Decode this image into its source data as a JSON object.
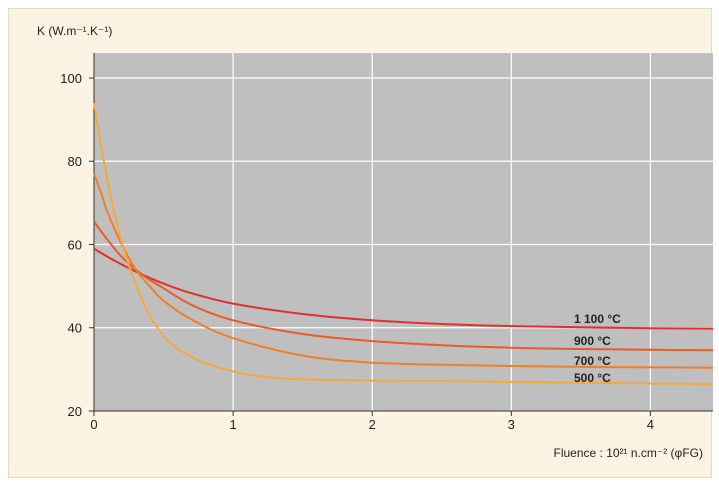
{
  "chart_data": {
    "type": "line",
    "title": "",
    "ylabel": "K (W.m⁻¹.K⁻¹)",
    "xlabel": "Fluence : 10²¹ n.cm⁻² (φFG)",
    "xlim": [
      0,
      4.45
    ],
    "ylim": [
      20,
      106
    ],
    "xticks": [
      0,
      1,
      2,
      3,
      4
    ],
    "yticks": [
      20,
      40,
      60,
      80,
      100
    ],
    "grid": true,
    "background_color": "#bfbfbf",
    "grid_color": "#ffffff",
    "series": [
      {
        "name": "1 100 °C",
        "color": "#e0302e",
        "x": [
          0,
          0.1,
          0.2,
          0.3,
          0.4,
          0.5,
          0.7,
          1.0,
          1.5,
          2.0,
          2.5,
          3.0,
          3.5,
          4.0,
          4.45
        ],
        "y": [
          59,
          57,
          55.2,
          53.5,
          52,
          50.6,
          48.3,
          45.8,
          43.3,
          41.8,
          40.9,
          40.4,
          40.1,
          39.9,
          39.8
        ]
      },
      {
        "name": "900 °C",
        "color": "#ea5a2a",
        "x": [
          0,
          0.1,
          0.2,
          0.3,
          0.4,
          0.5,
          0.7,
          1.0,
          1.5,
          2.0,
          2.5,
          3.0,
          3.5,
          4.0,
          4.45
        ],
        "y": [
          65.5,
          61,
          57,
          54,
          51.5,
          49.5,
          45.5,
          41.8,
          38.5,
          36.8,
          35.8,
          35.2,
          34.9,
          34.7,
          34.6
        ]
      },
      {
        "name": "700 °C",
        "color": "#f07f2a",
        "x": [
          0,
          0.05,
          0.1,
          0.2,
          0.3,
          0.4,
          0.5,
          0.7,
          1.0,
          1.5,
          2.0,
          2.5,
          3.0,
          3.5,
          4.0,
          4.45
        ],
        "y": [
          77,
          72.5,
          67.5,
          60,
          54,
          50,
          46.5,
          42,
          37.5,
          33.3,
          31.6,
          31.1,
          30.8,
          30.6,
          30.5,
          30.4
        ]
      },
      {
        "name": "500 °C",
        "color": "#f6a93b",
        "x": [
          0,
          0.05,
          0.1,
          0.15,
          0.2,
          0.25,
          0.3,
          0.35,
          0.4,
          0.5,
          0.6,
          0.7,
          0.8,
          1.0,
          1.2,
          1.5,
          2.0,
          2.5,
          3.0,
          3.5,
          4.0,
          4.45
        ],
        "y": [
          94,
          84,
          75,
          67,
          60.5,
          55,
          50.5,
          46.5,
          43,
          38,
          35,
          33,
          31.5,
          29.5,
          28.3,
          27.6,
          27.3,
          27.2,
          27,
          26.8,
          26.6,
          26.5
        ]
      }
    ]
  }
}
